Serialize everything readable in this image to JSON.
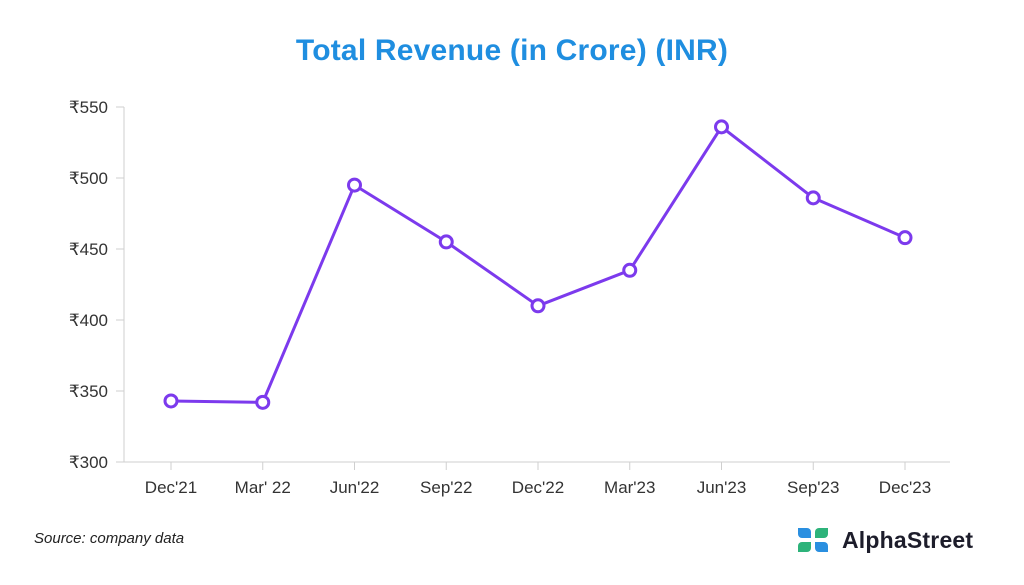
{
  "chart_data": {
    "type": "line",
    "title": "Total Revenue (in Crore) (INR)",
    "categories": [
      "Dec'21",
      "Mar' 22",
      "Jun'22",
      "Sep'22",
      "Dec'22",
      "Mar'23",
      "Jun'23",
      "Sep'23",
      "Dec'23"
    ],
    "series": [
      {
        "name": "Total Revenue",
        "values": [
          343,
          342,
          495,
          455,
          410,
          435,
          536,
          486,
          458
        ]
      }
    ],
    "ylim": [
      300,
      550
    ],
    "yticks": [
      300,
      350,
      400,
      450,
      500,
      550
    ],
    "ytick_prefix": "₹",
    "xlabel": "",
    "ylabel": "",
    "grid": false,
    "line_color": "#7c3aed"
  },
  "footer": {
    "source": "Source: company data",
    "brand": "AlphaStreet",
    "logo_icon": "alphastreet-logo-icon"
  },
  "colors": {
    "title": "#1f8ee0",
    "logo_blue": "#2a8fe0",
    "logo_green": "#2db37a"
  }
}
